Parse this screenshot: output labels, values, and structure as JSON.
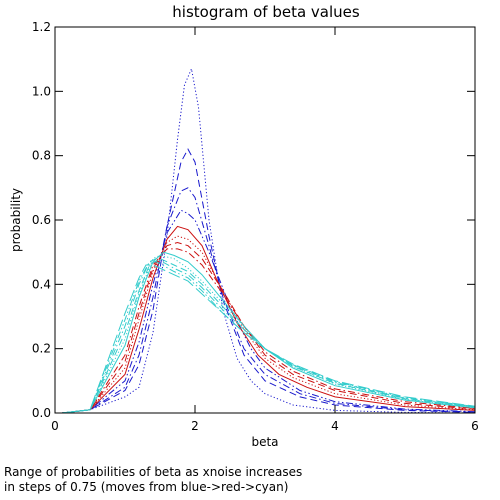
{
  "chart_data": {
    "type": "line",
    "title": "histogram of beta values",
    "xlabel": "beta",
    "ylabel": "probability",
    "xlim": [
      0,
      6
    ],
    "ylim": [
      0,
      1.2
    ],
    "xticks": [
      0,
      2,
      4,
      6
    ],
    "yticks": [
      0.0,
      0.2,
      0.4,
      0.6,
      0.8,
      1.0,
      1.2
    ],
    "ytick_labels": [
      "0.0",
      "0.2",
      "0.4",
      "0.6",
      "0.8",
      "1.0",
      "1.2"
    ],
    "grid": false,
    "colors": {
      "blue": "#1a1acd",
      "red": "#cc1111",
      "cyan": "#33cccc"
    },
    "series": [
      {
        "color": "blue",
        "dash": "dotted",
        "points": [
          [
            0.1,
            0
          ],
          [
            0.5,
            0.01
          ],
          [
            1.0,
            0.05
          ],
          [
            1.2,
            0.08
          ],
          [
            1.4,
            0.25
          ],
          [
            1.6,
            0.55
          ],
          [
            1.75,
            0.85
          ],
          [
            1.85,
            1.02
          ],
          [
            1.95,
            1.07
          ],
          [
            2.05,
            0.95
          ],
          [
            2.2,
            0.6
          ],
          [
            2.4,
            0.32
          ],
          [
            2.6,
            0.17
          ],
          [
            2.8,
            0.1
          ],
          [
            3.0,
            0.06
          ],
          [
            3.4,
            0.025
          ],
          [
            4.0,
            0.008
          ],
          [
            5.0,
            0.002
          ],
          [
            6.0,
            0
          ]
        ]
      },
      {
        "color": "blue",
        "dash": "dashed",
        "points": [
          [
            0.1,
            0
          ],
          [
            0.5,
            0.01
          ],
          [
            1.0,
            0.07
          ],
          [
            1.2,
            0.15
          ],
          [
            1.4,
            0.32
          ],
          [
            1.6,
            0.58
          ],
          [
            1.8,
            0.78
          ],
          [
            1.9,
            0.82
          ],
          [
            2.0,
            0.78
          ],
          [
            2.2,
            0.55
          ],
          [
            2.4,
            0.35
          ],
          [
            2.7,
            0.18
          ],
          [
            3.0,
            0.1
          ],
          [
            3.5,
            0.05
          ],
          [
            4.0,
            0.025
          ],
          [
            5.0,
            0.008
          ],
          [
            6.0,
            0.002
          ]
        ]
      },
      {
        "color": "blue",
        "dash": "dashdot",
        "points": [
          [
            0.1,
            0
          ],
          [
            0.5,
            0.01
          ],
          [
            1.0,
            0.08
          ],
          [
            1.2,
            0.18
          ],
          [
            1.4,
            0.36
          ],
          [
            1.6,
            0.58
          ],
          [
            1.8,
            0.69
          ],
          [
            1.9,
            0.7
          ],
          [
            2.0,
            0.67
          ],
          [
            2.2,
            0.52
          ],
          [
            2.4,
            0.36
          ],
          [
            2.7,
            0.2
          ],
          [
            3.0,
            0.12
          ],
          [
            3.5,
            0.06
          ],
          [
            4.0,
            0.03
          ],
          [
            5.0,
            0.01
          ],
          [
            6.0,
            0.003
          ]
        ]
      },
      {
        "color": "blue",
        "dash": "dashdotdot",
        "points": [
          [
            0.1,
            0
          ],
          [
            0.5,
            0.01
          ],
          [
            1.0,
            0.1
          ],
          [
            1.2,
            0.22
          ],
          [
            1.4,
            0.4
          ],
          [
            1.6,
            0.56
          ],
          [
            1.8,
            0.63
          ],
          [
            1.9,
            0.62
          ],
          [
            2.0,
            0.6
          ],
          [
            2.2,
            0.5
          ],
          [
            2.5,
            0.33
          ],
          [
            2.8,
            0.2
          ],
          [
            3.0,
            0.14
          ],
          [
            3.5,
            0.07
          ],
          [
            4.0,
            0.035
          ],
          [
            5.0,
            0.012
          ],
          [
            6.0,
            0.004
          ]
        ]
      },
      {
        "color": "red",
        "dash": "solid",
        "points": [
          [
            0.1,
            0
          ],
          [
            0.5,
            0.01
          ],
          [
            1.0,
            0.12
          ],
          [
            1.2,
            0.26
          ],
          [
            1.4,
            0.42
          ],
          [
            1.6,
            0.54
          ],
          [
            1.75,
            0.58
          ],
          [
            1.9,
            0.57
          ],
          [
            2.1,
            0.52
          ],
          [
            2.3,
            0.42
          ],
          [
            2.6,
            0.28
          ],
          [
            2.9,
            0.18
          ],
          [
            3.2,
            0.12
          ],
          [
            3.6,
            0.08
          ],
          [
            4.0,
            0.05
          ],
          [
            5.0,
            0.02
          ],
          [
            6.0,
            0.008
          ]
        ]
      },
      {
        "color": "red",
        "dash": "dotted",
        "points": [
          [
            0.1,
            0
          ],
          [
            0.5,
            0.01
          ],
          [
            1.0,
            0.14
          ],
          [
            1.2,
            0.29
          ],
          [
            1.4,
            0.44
          ],
          [
            1.6,
            0.53
          ],
          [
            1.75,
            0.55
          ],
          [
            1.9,
            0.54
          ],
          [
            2.1,
            0.5
          ],
          [
            2.4,
            0.38
          ],
          [
            2.7,
            0.26
          ],
          [
            3.0,
            0.17
          ],
          [
            3.4,
            0.11
          ],
          [
            4.0,
            0.06
          ],
          [
            5.0,
            0.025
          ],
          [
            6.0,
            0.01
          ]
        ]
      },
      {
        "color": "red",
        "dash": "dashed",
        "points": [
          [
            0.1,
            0
          ],
          [
            0.5,
            0.01
          ],
          [
            1.0,
            0.16
          ],
          [
            1.2,
            0.31
          ],
          [
            1.4,
            0.45
          ],
          [
            1.6,
            0.52
          ],
          [
            1.75,
            0.53
          ],
          [
            1.9,
            0.52
          ],
          [
            2.1,
            0.48
          ],
          [
            2.4,
            0.38
          ],
          [
            2.7,
            0.27
          ],
          [
            3.0,
            0.18
          ],
          [
            3.4,
            0.12
          ],
          [
            4.0,
            0.07
          ],
          [
            5.0,
            0.03
          ],
          [
            6.0,
            0.012
          ]
        ]
      },
      {
        "color": "red",
        "dash": "dashdot",
        "points": [
          [
            0.1,
            0
          ],
          [
            0.5,
            0.01
          ],
          [
            1.0,
            0.18
          ],
          [
            1.2,
            0.33
          ],
          [
            1.4,
            0.46
          ],
          [
            1.6,
            0.51
          ],
          [
            1.75,
            0.51
          ],
          [
            1.9,
            0.5
          ],
          [
            2.1,
            0.46
          ],
          [
            2.4,
            0.37
          ],
          [
            2.7,
            0.27
          ],
          [
            3.0,
            0.19
          ],
          [
            3.4,
            0.13
          ],
          [
            4.0,
            0.075
          ],
          [
            5.0,
            0.035
          ],
          [
            6.0,
            0.014
          ]
        ]
      },
      {
        "color": "cyan",
        "dash": "solid",
        "points": [
          [
            0.1,
            0
          ],
          [
            0.5,
            0.01
          ],
          [
            1.0,
            0.21
          ],
          [
            1.2,
            0.36
          ],
          [
            1.4,
            0.47
          ],
          [
            1.55,
            0.5
          ],
          [
            1.7,
            0.49
          ],
          [
            1.9,
            0.47
          ],
          [
            2.1,
            0.43
          ],
          [
            2.4,
            0.35
          ],
          [
            2.7,
            0.27
          ],
          [
            3.0,
            0.2
          ],
          [
            3.4,
            0.14
          ],
          [
            4.0,
            0.085
          ],
          [
            5.0,
            0.04
          ],
          [
            6.0,
            0.016
          ]
        ]
      },
      {
        "color": "cyan",
        "dash": "dotted",
        "points": [
          [
            0.1,
            0
          ],
          [
            0.5,
            0.01
          ],
          [
            1.0,
            0.23
          ],
          [
            1.2,
            0.37
          ],
          [
            1.4,
            0.48
          ],
          [
            1.5,
            0.49
          ],
          [
            1.7,
            0.48
          ],
          [
            1.9,
            0.45
          ],
          [
            2.1,
            0.41
          ],
          [
            2.4,
            0.34
          ],
          [
            2.7,
            0.27
          ],
          [
            3.0,
            0.2
          ],
          [
            3.4,
            0.145
          ],
          [
            4.0,
            0.09
          ],
          [
            5.0,
            0.042
          ],
          [
            6.0,
            0.017
          ]
        ]
      },
      {
        "color": "cyan",
        "dash": "dashed",
        "points": [
          [
            0.1,
            0
          ],
          [
            0.5,
            0.01
          ],
          [
            1.0,
            0.25
          ],
          [
            1.2,
            0.38
          ],
          [
            1.35,
            0.46
          ],
          [
            1.5,
            0.48
          ],
          [
            1.7,
            0.46
          ],
          [
            1.9,
            0.44
          ],
          [
            2.1,
            0.4
          ],
          [
            2.4,
            0.33
          ],
          [
            2.7,
            0.26
          ],
          [
            3.0,
            0.2
          ],
          [
            3.4,
            0.145
          ],
          [
            4.0,
            0.092
          ],
          [
            5.0,
            0.044
          ],
          [
            6.0,
            0.018
          ]
        ]
      },
      {
        "color": "cyan",
        "dash": "dashdot",
        "points": [
          [
            0.1,
            0
          ],
          [
            0.5,
            0.01
          ],
          [
            1.0,
            0.27
          ],
          [
            1.2,
            0.4
          ],
          [
            1.35,
            0.47
          ],
          [
            1.45,
            0.48
          ],
          [
            1.7,
            0.45
          ],
          [
            1.9,
            0.43
          ],
          [
            2.1,
            0.39
          ],
          [
            2.4,
            0.32
          ],
          [
            2.7,
            0.26
          ],
          [
            3.0,
            0.2
          ],
          [
            3.4,
            0.148
          ],
          [
            4.0,
            0.095
          ],
          [
            5.0,
            0.046
          ],
          [
            6.0,
            0.019
          ]
        ]
      },
      {
        "color": "cyan",
        "dash": "dashdotdot",
        "points": [
          [
            0.1,
            0
          ],
          [
            0.5,
            0.01
          ],
          [
            1.0,
            0.29
          ],
          [
            1.2,
            0.41
          ],
          [
            1.35,
            0.47
          ],
          [
            1.45,
            0.47
          ],
          [
            1.7,
            0.44
          ],
          [
            1.9,
            0.42
          ],
          [
            2.1,
            0.38
          ],
          [
            2.4,
            0.31
          ],
          [
            2.7,
            0.25
          ],
          [
            3.0,
            0.2
          ],
          [
            3.4,
            0.15
          ],
          [
            4.0,
            0.098
          ],
          [
            5.0,
            0.048
          ],
          [
            6.0,
            0.02
          ]
        ]
      },
      {
        "color": "cyan",
        "dash": "longdash",
        "points": [
          [
            0.1,
            0
          ],
          [
            0.5,
            0.01
          ],
          [
            1.0,
            0.31
          ],
          [
            1.2,
            0.42
          ],
          [
            1.3,
            0.46
          ],
          [
            1.4,
            0.46
          ],
          [
            1.7,
            0.43
          ],
          [
            1.9,
            0.41
          ],
          [
            2.1,
            0.37
          ],
          [
            2.4,
            0.31
          ],
          [
            2.7,
            0.25
          ],
          [
            3.0,
            0.2
          ],
          [
            3.4,
            0.152
          ],
          [
            4.0,
            0.1
          ],
          [
            5.0,
            0.05
          ],
          [
            6.0,
            0.021
          ]
        ]
      }
    ]
  },
  "caption": {
    "line1": "Range of probabilities of beta as xnoise increases",
    "line2": "in steps of 0.75 (moves from blue->red->cyan)"
  }
}
